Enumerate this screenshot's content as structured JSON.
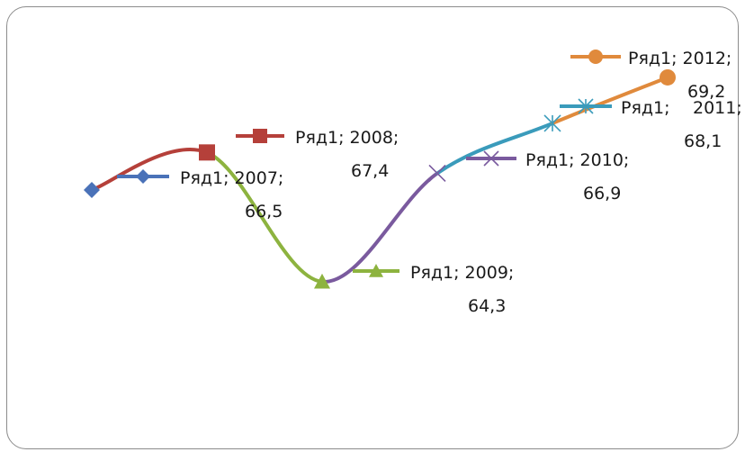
{
  "chart_data": {
    "type": "line",
    "smooth": true,
    "grid": false,
    "legend": "none",
    "categories": [
      "2007",
      "2008",
      "2009",
      "2010",
      "2011",
      "2012"
    ],
    "series": [
      {
        "name": "Ряд1",
        "values": [
          66.5,
          67.4,
          64.3,
          66.9,
          68.1,
          69.2
        ]
      }
    ],
    "segment_colors": [
      "#4a72b8",
      "#b5403a",
      "#8db33f",
      "#7a5a9e",
      "#3a9bbb",
      "#e08a3c"
    ],
    "marker_shapes": [
      "diamond",
      "square",
      "triangle",
      "x",
      "star",
      "circle"
    ],
    "data_labels": [
      {
        "line1": "Ряд1; 2007;",
        "line2": "66,5"
      },
      {
        "line1": "Ряд1; 2008;",
        "line2": "67,4"
      },
      {
        "line1": "Ряд1; 2009;",
        "line2": "64,3"
      },
      {
        "line1": "Ряд1; 2010;",
        "line2": "66,9"
      },
      {
        "line1": "Ряд1;",
        "line1b": "2011;",
        "line2": "68,1"
      },
      {
        "line1": "Ряд1; 2012;",
        "line2": "69,2"
      }
    ]
  }
}
